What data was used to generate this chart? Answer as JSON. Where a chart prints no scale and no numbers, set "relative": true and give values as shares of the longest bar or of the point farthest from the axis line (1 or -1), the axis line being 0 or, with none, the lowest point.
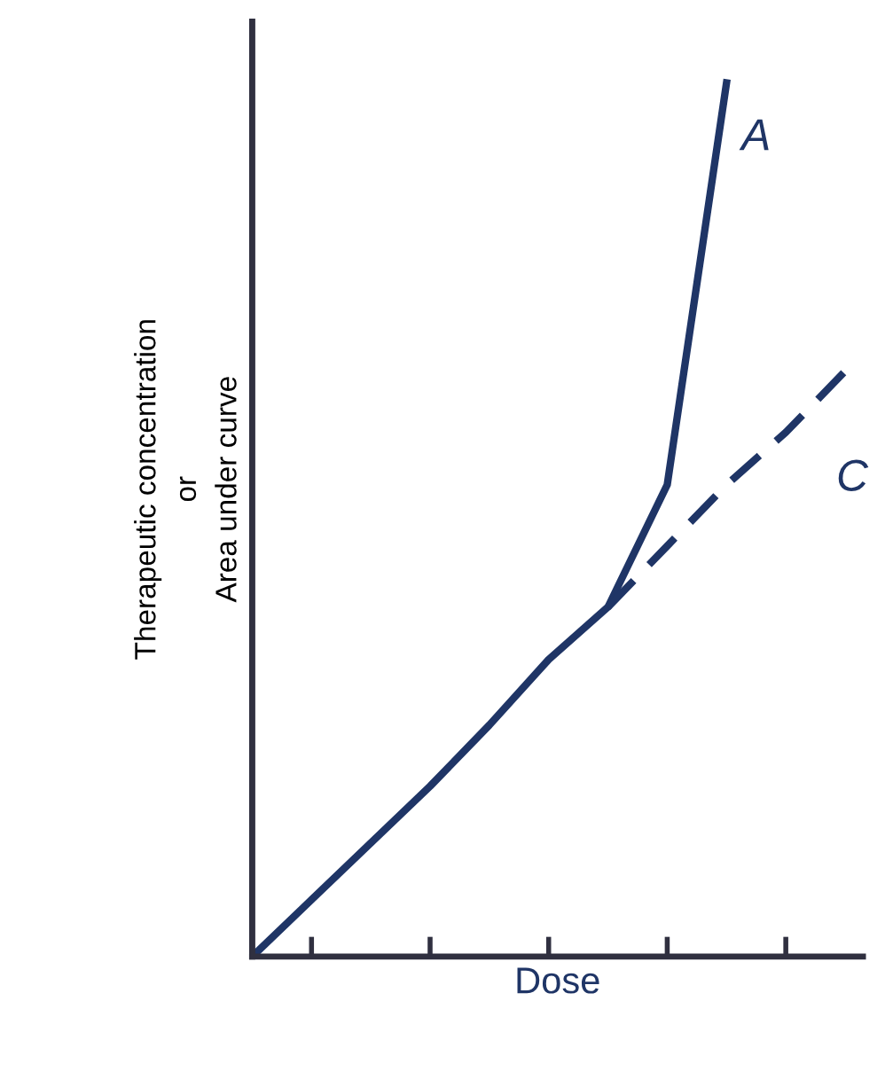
{
  "chart_data": {
    "type": "line",
    "relative": true,
    "xlabel": "Dose",
    "ylabel": "Therapeutic concentration\nor\nArea under curve",
    "categories": [
      null,
      null,
      null,
      null,
      null,
      null,
      null,
      null,
      null,
      null,
      null
    ],
    "series": [
      {
        "name": "A",
        "color": "#1f3566",
        "line_style": "solid",
        "values": [
          0,
          0.065,
          0.13,
          0.195,
          0.265,
          0.34,
          0.4,
          0.54,
          1.0,
          null,
          null
        ]
      },
      {
        "name": "C",
        "color": "#1f3566",
        "line_style": "dashed",
        "values": [
          null,
          null,
          null,
          null,
          null,
          null,
          0.4,
          0.47,
          0.54,
          0.6,
          0.67
        ]
      }
    ],
    "tick_labels": false,
    "grid": false,
    "legend": false,
    "marker": "none"
  }
}
